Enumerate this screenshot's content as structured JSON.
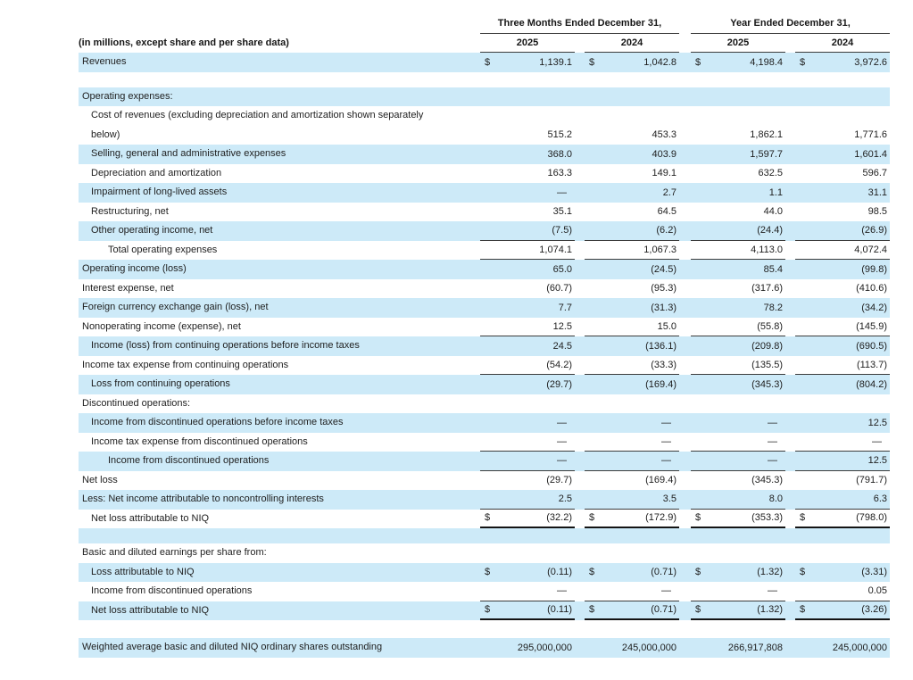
{
  "table": {
    "caption_left": "(in millions, except share and per share data)",
    "col_groups": [
      {
        "label": "Three Months Ended December 31,"
      },
      {
        "label": "Year Ended December 31,"
      }
    ],
    "col_years": [
      "2025",
      "2024",
      "2025",
      "2024"
    ],
    "accent_color": "#cdeaf8",
    "rows": [
      {
        "label": "Revenues",
        "indent": 0,
        "shade": true,
        "dollar": true,
        "values": [
          "1,139.1",
          "1,042.8",
          "4,198.4",
          "3,972.6"
        ],
        "rule": "none"
      },
      {
        "spacer": true,
        "shade": false,
        "height": 17
      },
      {
        "label": "Operating expenses:",
        "indent": 0,
        "shade": true,
        "values": null,
        "rule": "none"
      },
      {
        "label": "Cost of revenues (excluding depreciation and amortization shown separately",
        "label2": "below)",
        "indent": 1,
        "shade": false,
        "values": [
          "515.2",
          "453.3",
          "1,862.1",
          "1,771.6"
        ],
        "rule": "none"
      },
      {
        "label": "Selling, general and administrative expenses",
        "indent": 1,
        "shade": true,
        "values": [
          "368.0",
          "403.9",
          "1,597.7",
          "1,601.4"
        ],
        "rule": "none"
      },
      {
        "label": "Depreciation and amortization",
        "indent": 1,
        "shade": false,
        "values": [
          "163.3",
          "149.1",
          "632.5",
          "596.7"
        ],
        "rule": "none"
      },
      {
        "label": "Impairment of long-lived assets",
        "indent": 1,
        "shade": true,
        "values": [
          "—",
          "2.7",
          "1.1",
          "31.1"
        ],
        "rule": "none"
      },
      {
        "label": "Restructuring, net",
        "indent": 1,
        "shade": false,
        "values": [
          "35.1",
          "64.5",
          "44.0",
          "98.5"
        ],
        "rule": "none"
      },
      {
        "label": "Other operating income, net",
        "indent": 1,
        "shade": true,
        "values": [
          "(7.5)",
          "(6.2)",
          "(24.4)",
          "(26.9)"
        ],
        "rule": "single"
      },
      {
        "label": "Total operating expenses",
        "indent": 2,
        "shade": false,
        "values": [
          "1,074.1",
          "1,067.3",
          "4,113.0",
          "4,072.4"
        ],
        "rule": "single"
      },
      {
        "label": "Operating income (loss)",
        "indent": 0,
        "shade": true,
        "values": [
          "65.0",
          "(24.5)",
          "85.4",
          "(99.8)"
        ],
        "rule": "none"
      },
      {
        "label": "Interest expense, net",
        "indent": 0,
        "shade": false,
        "values": [
          "(60.7)",
          "(95.3)",
          "(317.6)",
          "(410.6)"
        ],
        "rule": "none"
      },
      {
        "label": "Foreign currency exchange gain (loss), net",
        "indent": 0,
        "shade": true,
        "values": [
          "7.7",
          "(31.3)",
          "78.2",
          "(34.2)"
        ],
        "rule": "none"
      },
      {
        "label": "Nonoperating income (expense), net",
        "indent": 0,
        "shade": false,
        "values": [
          "12.5",
          "15.0",
          "(55.8)",
          "(145.9)"
        ],
        "rule": "single"
      },
      {
        "label": "Income (loss) from continuing operations before income taxes",
        "indent": 1,
        "shade": true,
        "values": [
          "24.5",
          "(136.1)",
          "(209.8)",
          "(690.5)"
        ],
        "rule": "none"
      },
      {
        "label": "Income tax expense from continuing operations",
        "indent": 0,
        "shade": false,
        "values": [
          "(54.2)",
          "(33.3)",
          "(135.5)",
          "(113.7)"
        ],
        "rule": "single"
      },
      {
        "label": "Loss from continuing operations",
        "indent": 1,
        "shade": true,
        "values": [
          "(29.7)",
          "(169.4)",
          "(345.3)",
          "(804.2)"
        ],
        "rule": "none"
      },
      {
        "label": "Discontinued operations:",
        "indent": 0,
        "shade": false,
        "values": null,
        "rule": "none"
      },
      {
        "label": "Income from discontinued operations before income taxes",
        "indent": 1,
        "shade": true,
        "values": [
          "—",
          "—",
          "—",
          "12.5"
        ],
        "rule": "none"
      },
      {
        "label": "Income tax expense from discontinued operations",
        "indent": 1,
        "shade": false,
        "values": [
          "—",
          "—",
          "—",
          "—"
        ],
        "rule": "single"
      },
      {
        "label": "Income from discontinued operations",
        "indent": 2,
        "shade": true,
        "values": [
          "—",
          "—",
          "—",
          "12.5"
        ],
        "rule": "single"
      },
      {
        "label": "Net loss",
        "indent": 0,
        "shade": false,
        "values": [
          "(29.7)",
          "(169.4)",
          "(345.3)",
          "(791.7)"
        ],
        "rule": "none"
      },
      {
        "label": "Less: Net income attributable to noncontrolling interests",
        "indent": 0,
        "shade": true,
        "values": [
          "2.5",
          "3.5",
          "8.0",
          "6.3"
        ],
        "rule": "single"
      },
      {
        "label": "Net loss attributable to NIQ",
        "indent": 1,
        "shade": false,
        "dollar": true,
        "values": [
          "(32.2)",
          "(172.9)",
          "(353.3)",
          "(798.0)"
        ],
        "rule": "double"
      },
      {
        "spacer": true,
        "shade": true,
        "height": 17
      },
      {
        "label": "Basic and diluted earnings per share from:",
        "indent": 0,
        "shade": false,
        "values": null,
        "rule": "none"
      },
      {
        "label": "Loss attributable to NIQ",
        "indent": 1,
        "shade": true,
        "dollar": true,
        "values": [
          "(0.11)",
          "(0.71)",
          "(1.32)",
          "(3.31)"
        ],
        "rule": "none"
      },
      {
        "label": "Income from discontinued operations",
        "indent": 1,
        "shade": false,
        "values": [
          "—",
          "—",
          "—",
          "0.05"
        ],
        "rule": "single"
      },
      {
        "label": "Net loss attributable to NIQ",
        "indent": 1,
        "shade": true,
        "dollar": true,
        "values": [
          "(0.11)",
          "(0.71)",
          "(1.32)",
          "(3.26)"
        ],
        "rule": "double"
      },
      {
        "spacer": true,
        "shade": false,
        "height": 20
      },
      {
        "label": "Weighted average basic and diluted NIQ ordinary shares outstanding",
        "indent": 0,
        "shade": true,
        "values": [
          "295,000,000",
          "245,000,000",
          "266,917,808",
          "245,000,000"
        ],
        "rule": "none"
      }
    ]
  }
}
